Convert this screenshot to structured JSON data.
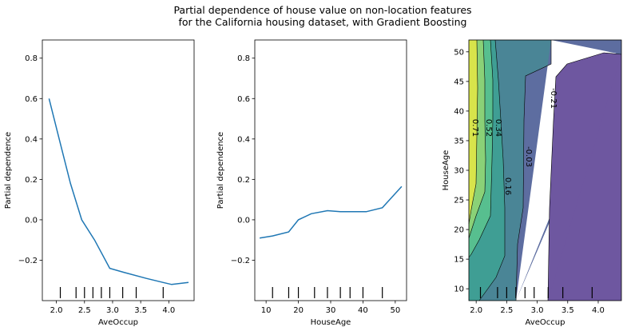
{
  "figure": {
    "title_line1": "Partial dependence of house value on non-location features",
    "title_line2": "for the California housing dataset, with Gradient Boosting"
  },
  "chart_data": [
    {
      "type": "line",
      "xlabel": "AveOccup",
      "ylabel": "Partial dependence",
      "xlim": [
        1.75,
        4.45
      ],
      "ylim": [
        -0.4,
        0.89
      ],
      "xticks": [
        2.0,
        2.5,
        3.0,
        3.5,
        4.0
      ],
      "xtick_labels": [
        "2.0",
        "2.5",
        "3.0",
        "3.5",
        "4.0"
      ],
      "yticks": [
        -0.2,
        0.0,
        0.2,
        0.4,
        0.6,
        0.8
      ],
      "ytick_labels": [
        "−0.2",
        "0.0",
        "0.2",
        "0.4",
        "0.6",
        "0.8"
      ],
      "x": [
        1.87,
        2.05,
        2.25,
        2.45,
        2.68,
        2.95,
        3.2,
        3.6,
        3.9,
        4.05,
        4.35
      ],
      "y": [
        0.6,
        0.4,
        0.18,
        0.0,
        -0.1,
        -0.24,
        -0.26,
        -0.29,
        -0.31,
        -0.32,
        -0.31
      ],
      "line_color": "#1f77b4",
      "rug": [
        2.07,
        2.35,
        2.5,
        2.65,
        2.8,
        2.95,
        3.18,
        3.42,
        3.9
      ]
    },
    {
      "type": "line",
      "xlabel": "HouseAge",
      "ylabel": "Partial dependence",
      "xlim": [
        6.5,
        53.5
      ],
      "ylim": [
        -0.4,
        0.89
      ],
      "xticks": [
        10,
        20,
        30,
        40,
        50
      ],
      "xtick_labels": [
        "10",
        "20",
        "30",
        "40",
        "50"
      ],
      "yticks": [
        -0.2,
        0.0,
        0.2,
        0.4,
        0.6,
        0.8
      ],
      "ytick_labels": [
        "−0.2",
        "0.0",
        "0.2",
        "0.4",
        "0.6",
        "0.8"
      ],
      "x": [
        8,
        12,
        17,
        20,
        24,
        29,
        33,
        37,
        41,
        46,
        52
      ],
      "y": [
        -0.09,
        -0.08,
        -0.06,
        0.0,
        0.03,
        0.045,
        0.04,
        0.04,
        0.04,
        0.06,
        0.165
      ],
      "line_color": "#1f77b4",
      "rug": [
        12,
        17,
        20,
        25,
        29,
        33,
        36,
        40,
        46
      ]
    },
    {
      "type": "heatmap",
      "subtype": "contour",
      "xlabel": "AveOccup",
      "ylabel": "HouseAge",
      "xlim": [
        1.88,
        4.38
      ],
      "ylim": [
        8,
        52
      ],
      "xticks": [
        2.0,
        2.5,
        3.0,
        3.5,
        4.0
      ],
      "xtick_labels": [
        "2.0",
        "2.5",
        "3.0",
        "3.5",
        "4.0"
      ],
      "yticks": [
        10,
        15,
        20,
        25,
        30,
        35,
        40,
        45,
        50
      ],
      "ytick_labels": [
        "10",
        "15",
        "20",
        "25",
        "30",
        "35",
        "40",
        "45",
        "50"
      ],
      "contour_levels": [
        "0.71",
        "0.52",
        "0.34",
        "0.16",
        "-0.03",
        "-0.21"
      ],
      "level_colors": [
        "#d8e44b",
        "#8ad177",
        "#57bf8f",
        "#3f9e94",
        "#4a8596",
        "#5d6da0",
        "#6e57a0"
      ],
      "rug": [
        2.07,
        2.35,
        2.5,
        2.65,
        2.8,
        2.95,
        3.18,
        3.42,
        3.9
      ]
    }
  ]
}
